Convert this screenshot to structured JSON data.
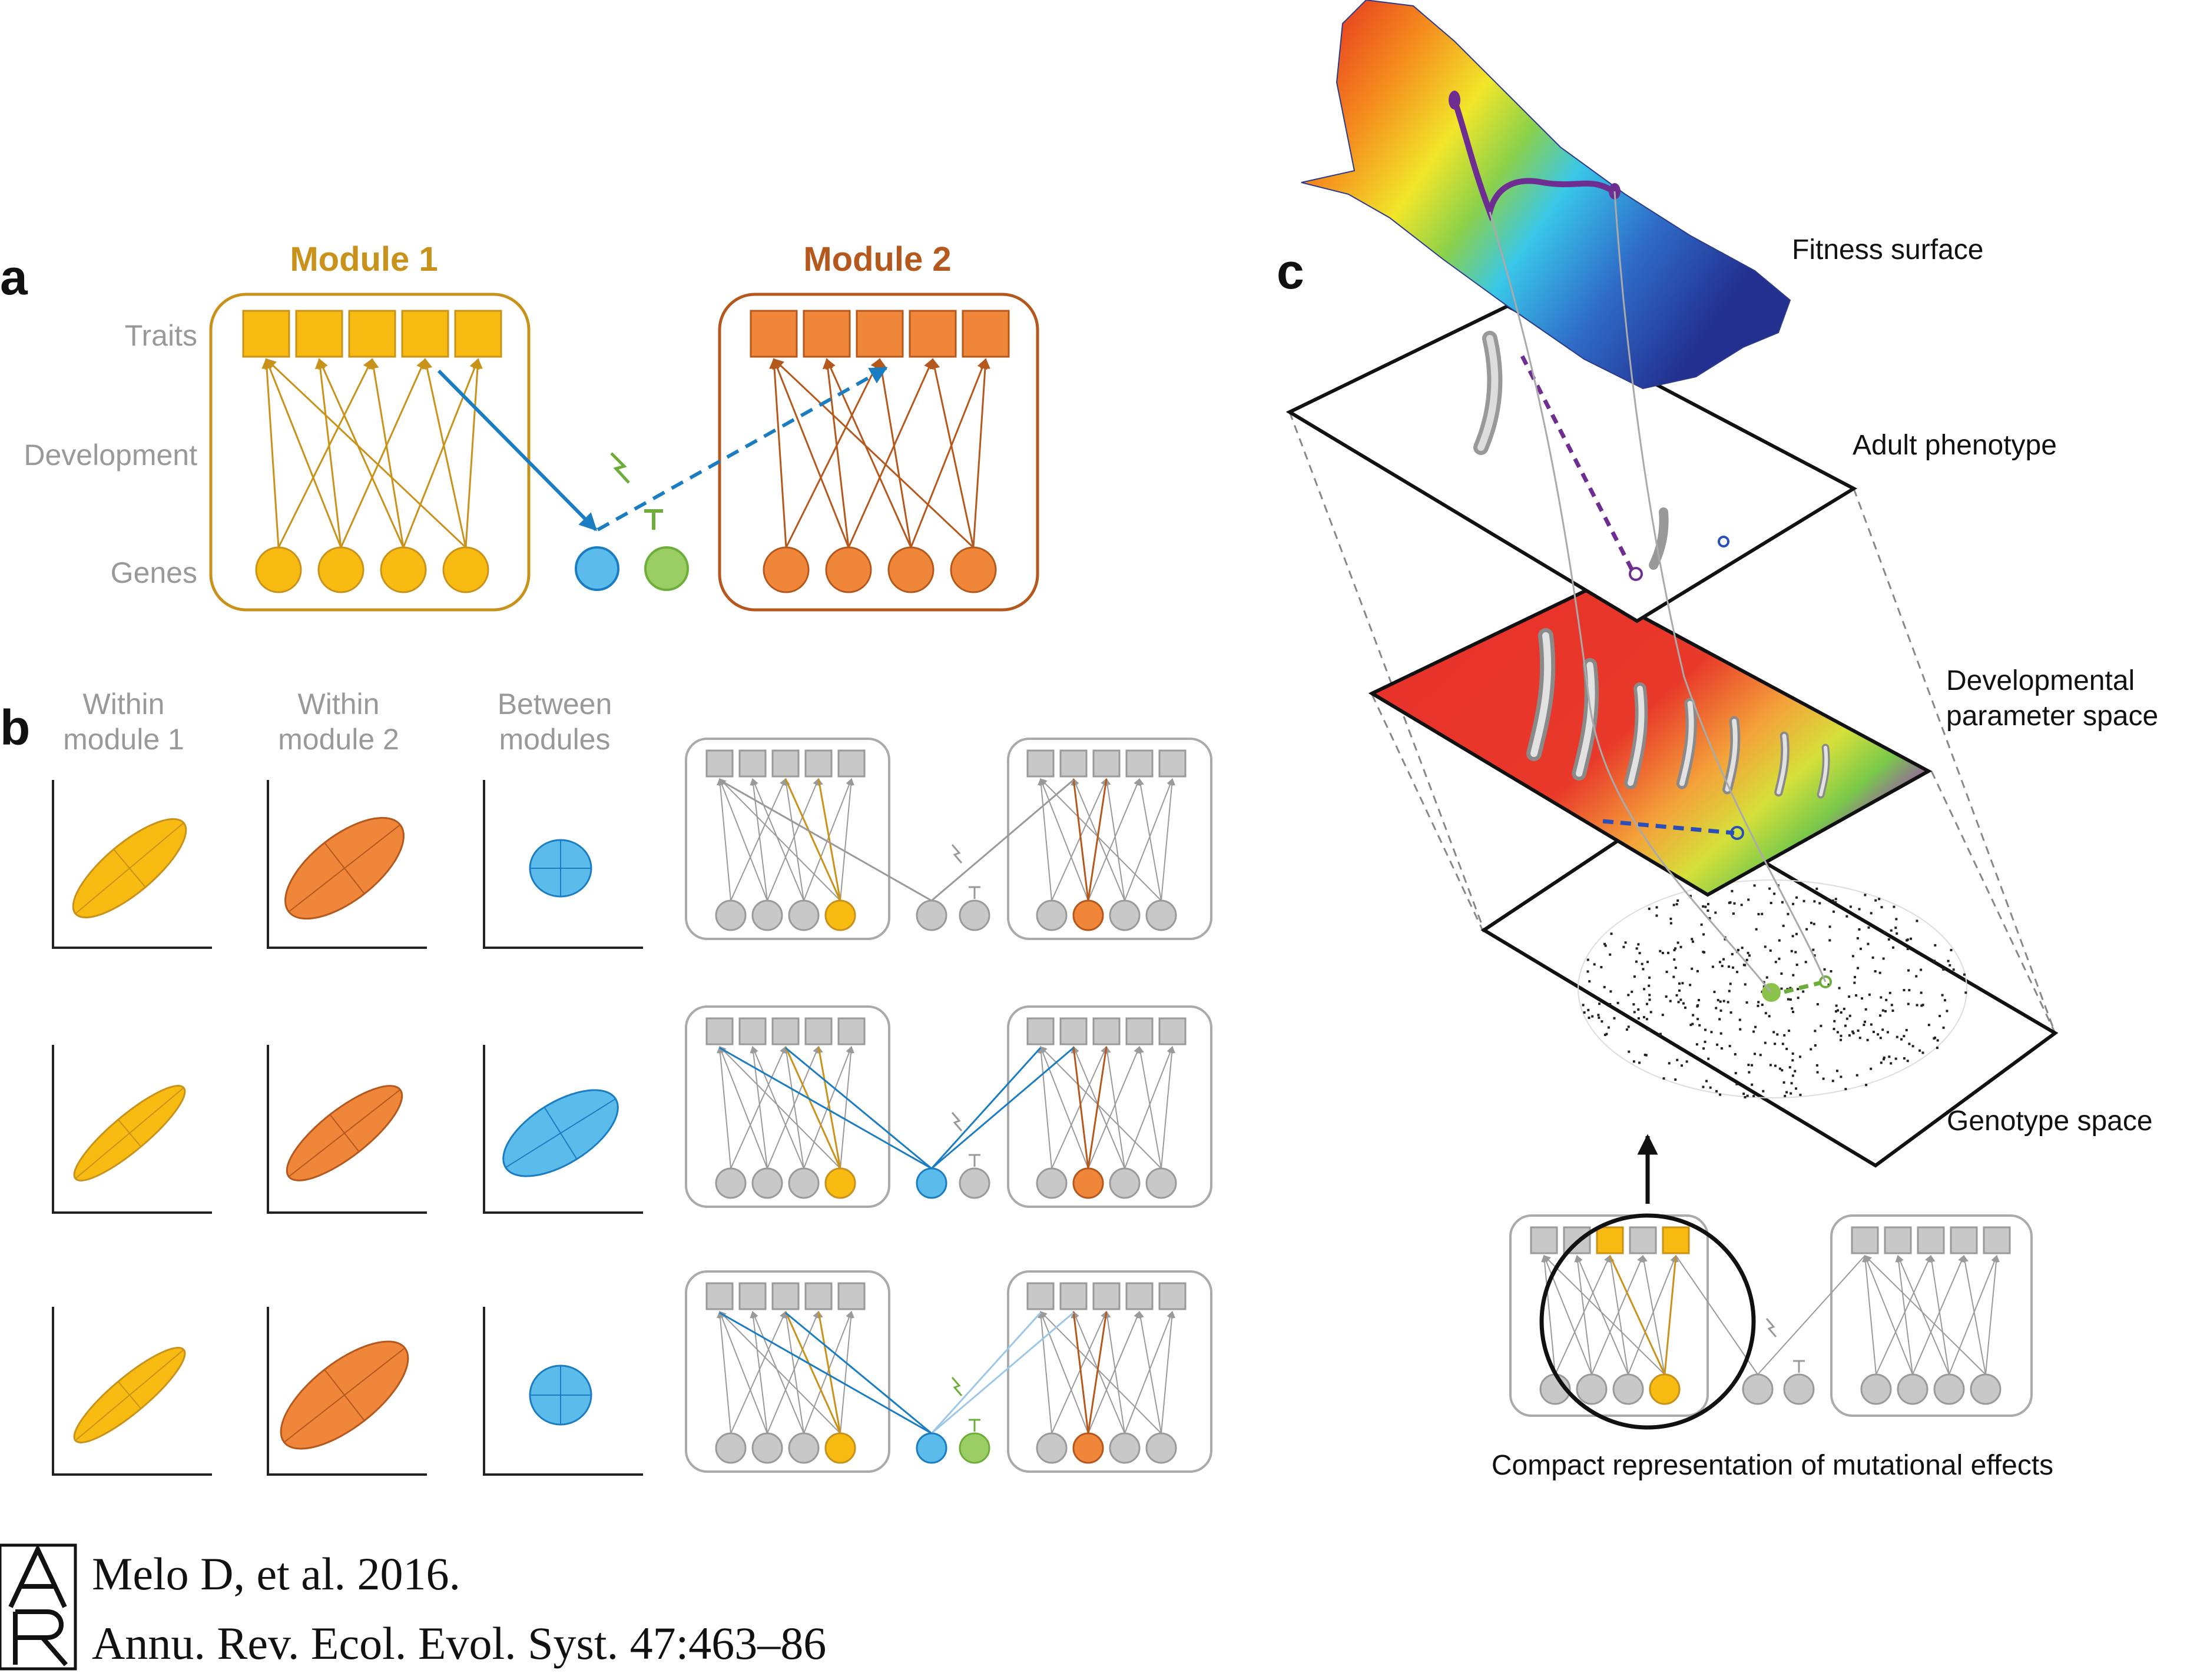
{
  "panel_a": {
    "letter": "a",
    "module1_title": "Module 1",
    "module2_title": "Module 2",
    "row_labels": {
      "traits": "Traits",
      "development": "Development",
      "genes": "Genes"
    }
  },
  "panel_b": {
    "letter": "b",
    "columns": [
      {
        "line1": "Within",
        "line2": "module 1"
      },
      {
        "line1": "Within",
        "line2": "module 2"
      },
      {
        "line1": "Between",
        "line2": "modules"
      }
    ]
  },
  "panel_c": {
    "letter": "c",
    "layers": {
      "fitness": "Fitness surface",
      "phenotype": "Adult phenotype",
      "dev_line1": "Developmental",
      "dev_line2": "parameter space",
      "genotype": "Genotype space"
    },
    "caption": "Compact representation of mutational effects"
  },
  "citation": {
    "logo_letters": "AR",
    "line1": "Melo D, et al. 2016.",
    "line2": "Annu. Rev. Ecol. Evol. Syst. 47:463–86"
  },
  "colors": {
    "module1": "#C8921B",
    "module1_fill": "#F8BB12",
    "module2": "#B5581E",
    "module2_fill": "#F0863A",
    "blue": "#1B7DC1",
    "blue_fill": "#5BBCEB",
    "green": "#6DAE3A",
    "green_fill": "#9ACD63",
    "grey": "#9A9A9A",
    "grey_fill": "#C8C8C8",
    "purple": "#6E2D91"
  }
}
